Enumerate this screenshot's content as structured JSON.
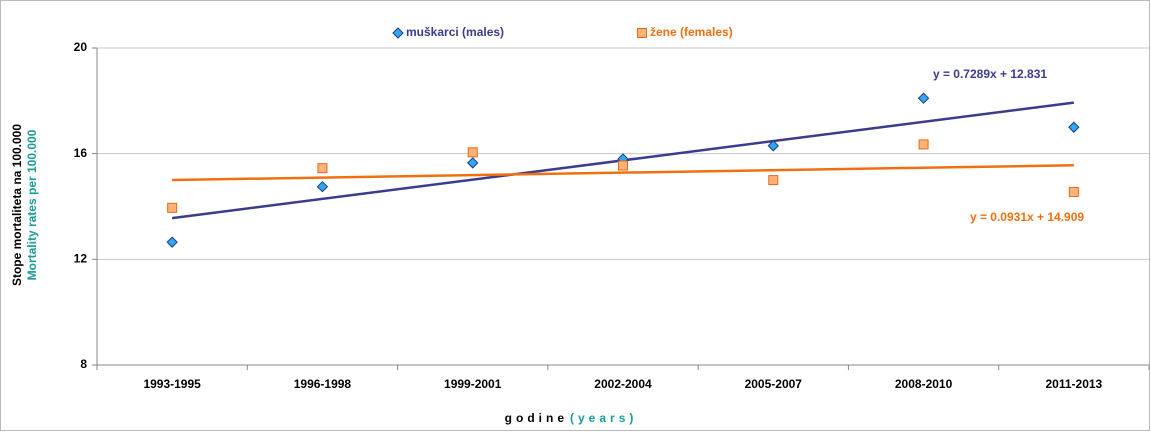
{
  "chart_data": {
    "type": "scatter",
    "categories": [
      "1993-1995",
      "1996-1998",
      "1999-2001",
      "2002-2004",
      "2005-2007",
      "2008-2010",
      "2011-2013"
    ],
    "series": [
      {
        "name": "muškarci (males)",
        "color": "#33a6f0",
        "edge": "#1e3a8a",
        "marker": "diamond",
        "values": [
          12.65,
          14.75,
          15.65,
          15.8,
          16.3,
          18.1,
          17.0
        ],
        "trendline": {
          "label": "y = 0.7289x + 12.831",
          "slope": 0.7289,
          "intercept": 12.831,
          "color": "#3b3b8f"
        }
      },
      {
        "name": "žene (females)",
        "color": "#ffb27a",
        "edge": "#e86a10",
        "marker": "square",
        "values": [
          13.95,
          15.45,
          16.05,
          15.55,
          15.0,
          16.35,
          14.55
        ],
        "trendline": {
          "label": "y = 0.0931x + 14.909",
          "slope": 0.0931,
          "intercept": 14.909,
          "color": "#f07010"
        }
      }
    ],
    "ylim": [
      8,
      20
    ],
    "yticks": [
      8,
      12,
      16,
      20
    ],
    "grid": true,
    "y_label": "Stope mortaliteta na 100.000",
    "y_label_en": "Mortality rates per 100.000",
    "x_label": "godine",
    "x_label_en": "(years)"
  }
}
